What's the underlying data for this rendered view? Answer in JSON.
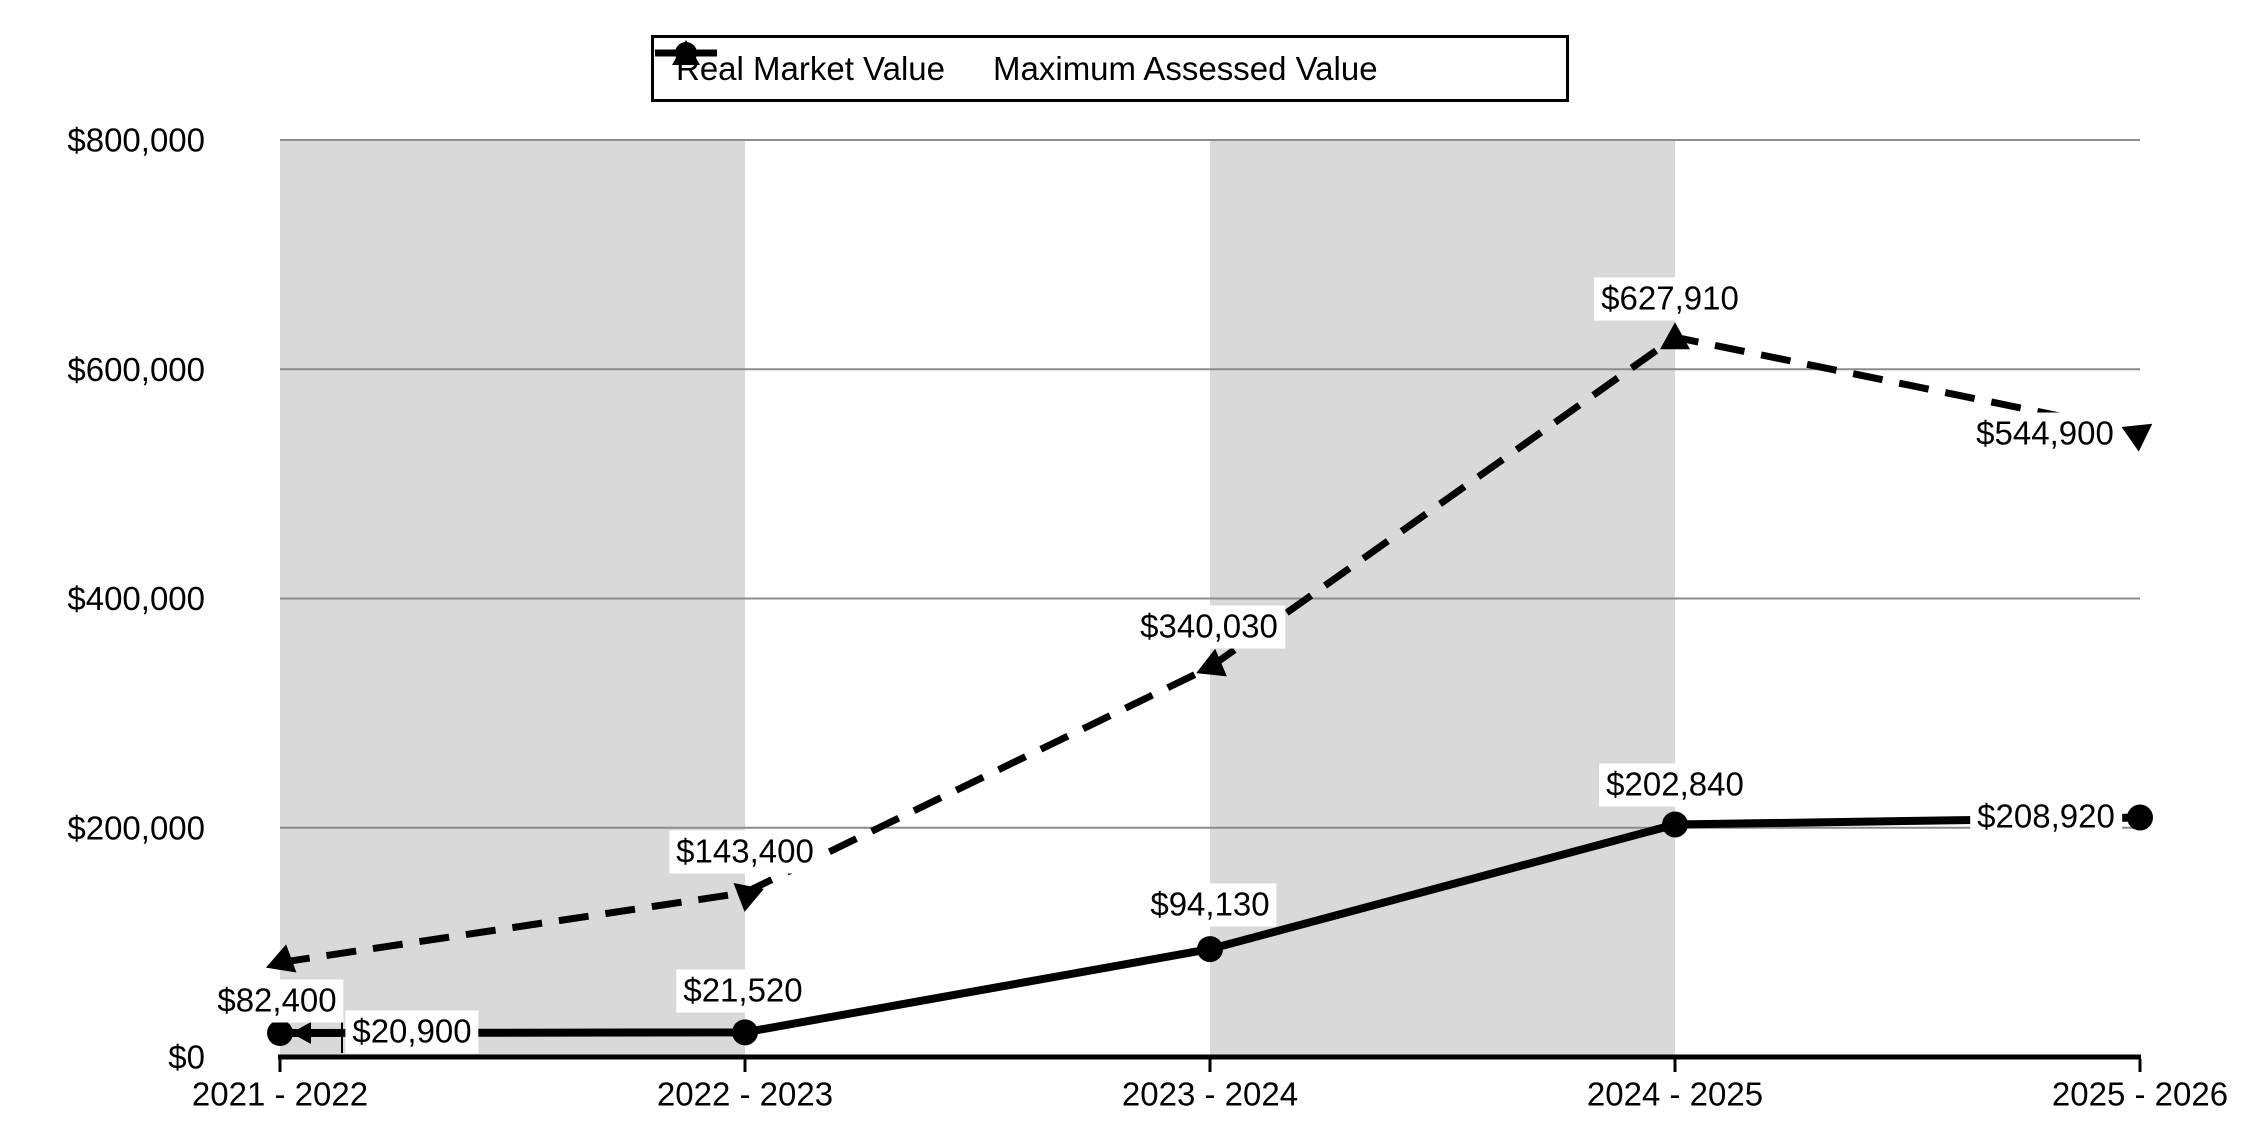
{
  "legend": {
    "items": [
      {
        "label": "Real Market Value"
      },
      {
        "label": "Maximum Assessed Value"
      }
    ]
  },
  "chart_data": {
    "type": "line",
    "title": "",
    "xlabel": "",
    "ylabel": "",
    "categories": [
      "2021 - 2022",
      "2022 - 2023",
      "2023 - 2024",
      "2024 - 2025",
      "2025 - 2026"
    ],
    "series": [
      {
        "name": "Real Market Value",
        "line_style": "dashed",
        "marker": "triangle",
        "color": "#000000",
        "values": [
          82400,
          143400,
          340030,
          627910,
          544900
        ],
        "data_labels": [
          "$82,400",
          "$143,400",
          "$340,030",
          "$627,910",
          "$544,900"
        ]
      },
      {
        "name": "Maximum Assessed Value",
        "line_style": "solid",
        "marker": "circle",
        "color": "#000000",
        "values": [
          20900,
          21520,
          94130,
          202840,
          208920
        ],
        "data_labels": [
          "$20,900",
          "$21,520",
          "$94,130",
          "$202,840",
          "$208,920"
        ]
      }
    ],
    "ylim": [
      0,
      800000
    ],
    "y_tick_interval": 200000,
    "y_tick_labels": [
      "$0",
      "$200,000",
      "$400,000",
      "$600,000",
      "$800,000"
    ],
    "grid": true,
    "legend_position": "top-center",
    "shaded_column_spans": [
      [
        0,
        1
      ],
      [
        2,
        3
      ]
    ],
    "colors": {
      "series": "#000000",
      "shaded_band": "#d9d9d9",
      "gridline": "#8c8c8c",
      "background": "#ffffff"
    }
  }
}
